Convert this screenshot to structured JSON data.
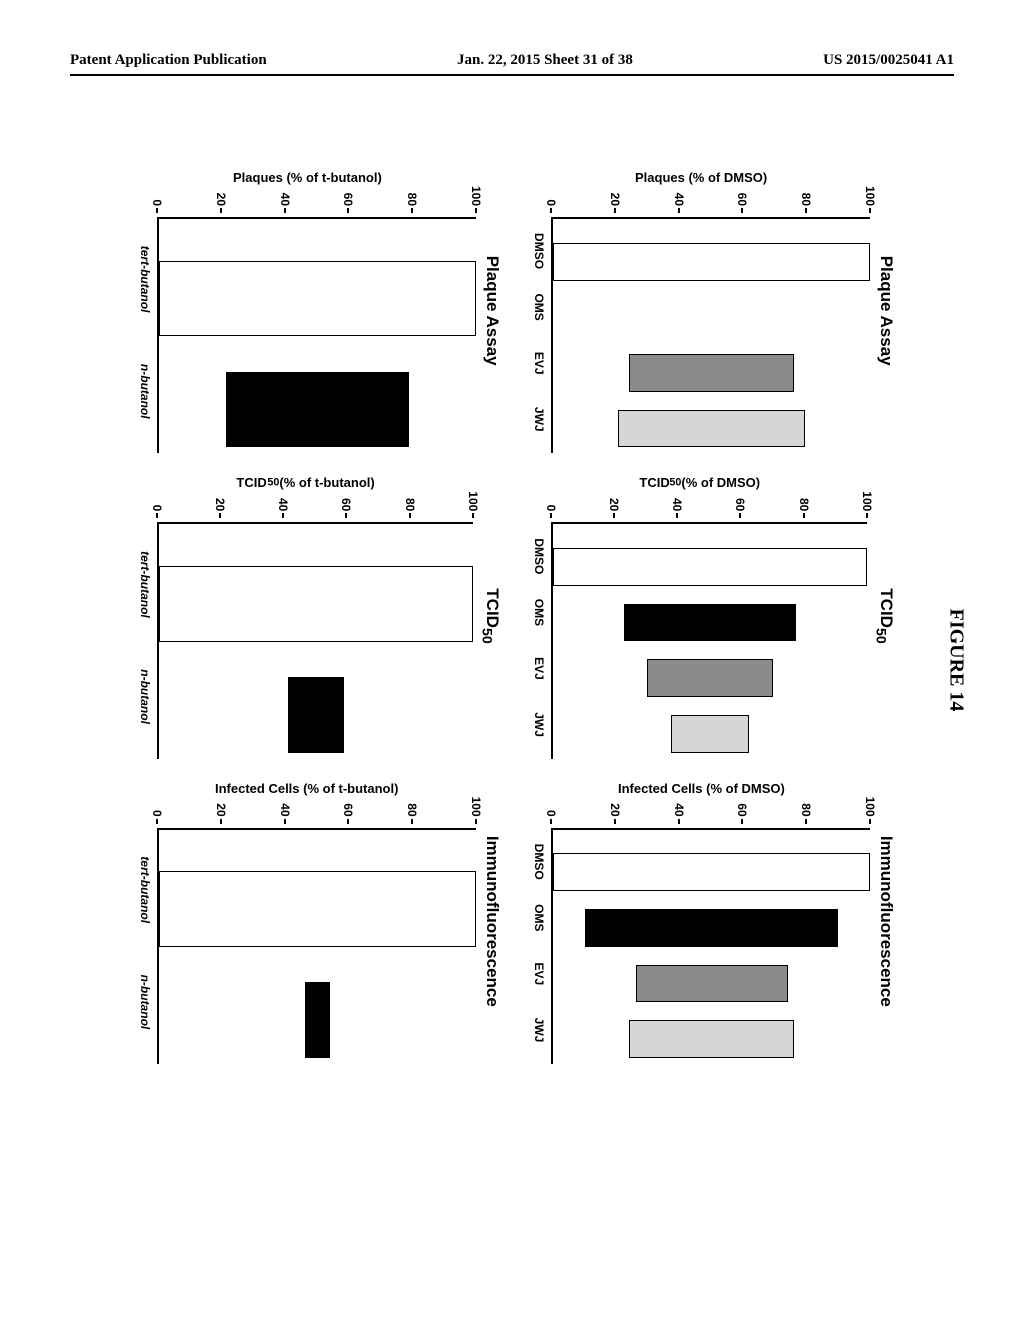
{
  "header": {
    "left": "Patent Application Publication",
    "center": "Jan. 22, 2015  Sheet 31 of 38",
    "right": "US 2015/0025041 A1"
  },
  "figure_label": "FIGURE 14",
  "ylim": [
    0,
    100
  ],
  "ytick_step": 20,
  "colors": {
    "white": "#ffffff",
    "black": "#000000",
    "hatch_gray": "#8b8b8b",
    "light_gray": "#d6d6d6"
  },
  "bar_border_color": "#000000",
  "axis_fontsize": 12,
  "title_fontsize": 17,
  "axis_font_family": "Arial",
  "row1": {
    "yLabels": [
      "Plaques (% of DMSO)",
      "TCID₅₀ (% of DMSO)",
      "Infected Cells (% of DMSO)"
    ],
    "titles": [
      "Plaque Assay",
      "TCID₅₀",
      "Immunofluorescence"
    ],
    "categories": [
      "DMSO",
      "OMS",
      "EVJ",
      "JWJ"
    ],
    "charts": [
      {
        "values": [
          100,
          null,
          52,
          59
        ],
        "fills": [
          "white",
          null,
          "hatch_gray",
          "light_gray"
        ]
      },
      {
        "values": [
          100,
          55,
          40,
          25
        ],
        "fills": [
          "white",
          "black",
          "hatch_gray",
          "light_gray"
        ]
      },
      {
        "values": [
          100,
          80,
          48,
          52
        ],
        "fills": [
          "white",
          "black",
          "hatch_gray",
          "light_gray"
        ]
      }
    ]
  },
  "row2": {
    "yLabels": [
      "Plaques (% of t-butanol)",
      "TCID₅₀ (% of t-butanol)",
      "Infected Cells (% of t-butanol)"
    ],
    "titles": [
      "Plaque Assay",
      "TCID₅₀",
      "Immunofluorescence"
    ],
    "categories": [
      "tert-butanol",
      "n-butanol"
    ],
    "categories_italic": [
      true,
      true
    ],
    "charts": [
      {
        "values": [
          100,
          58
        ],
        "fills": [
          "white",
          "black"
        ]
      },
      {
        "values": [
          100,
          18
        ],
        "fills": [
          "white",
          "black"
        ]
      },
      {
        "values": [
          100,
          8
        ],
        "fills": [
          "white",
          "black"
        ]
      }
    ]
  }
}
